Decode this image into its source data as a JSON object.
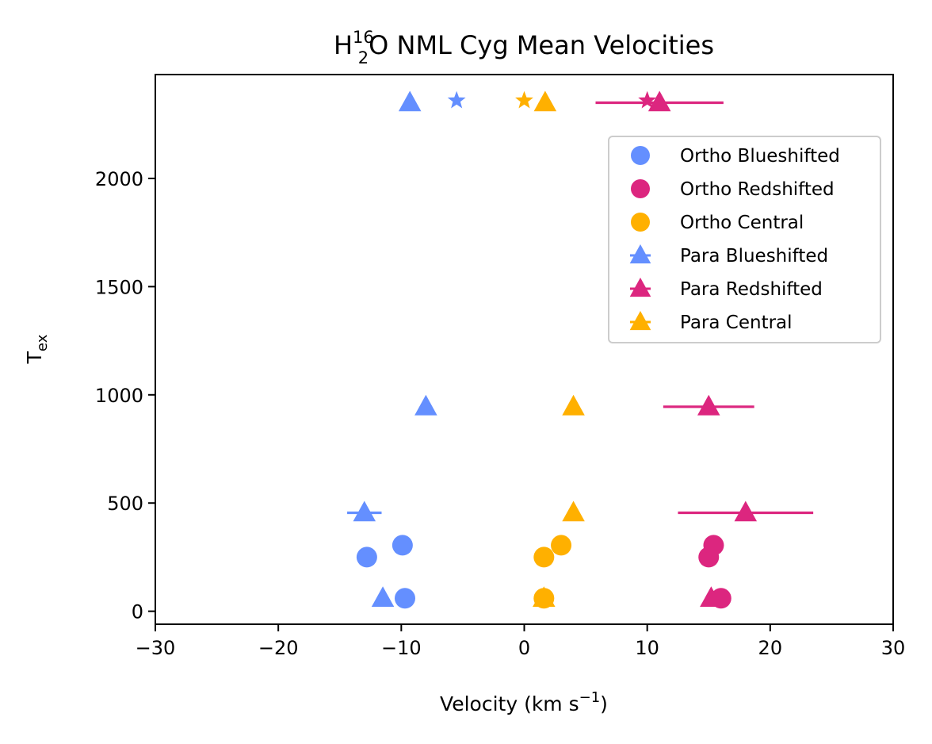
{
  "chart_data": {
    "type": "scatter",
    "title_main": "H",
    "title_sub": "2",
    "title_sup": "16",
    "title_rest": "O NML Cyg Mean Velocities",
    "xlabel_main": "Velocity (km s",
    "xlabel_sup": "−1",
    "xlabel_close": ")",
    "ylabel_main": "T",
    "ylabel_sub": "ex",
    "xlim": [
      -30,
      30
    ],
    "ylim": [
      -60,
      2480
    ],
    "xticks": [
      -30,
      -20,
      -10,
      0,
      10,
      20,
      30
    ],
    "xtick_labels": [
      "−30",
      "−20",
      "−10",
      "0",
      "10",
      "20",
      "30"
    ],
    "yticks": [
      0,
      500,
      1000,
      1500,
      2000
    ],
    "ytick_labels": [
      "0",
      "500",
      "1000",
      "1500",
      "2000"
    ],
    "legend_position": "upper-right",
    "series": [
      {
        "name": "Ortho Blueshifted",
        "color": "#648FFF",
        "marker": "circle",
        "points": [
          {
            "x": -9.7,
            "y": 60
          },
          {
            "x": -12.8,
            "y": 250
          },
          {
            "x": -9.9,
            "y": 305
          }
        ]
      },
      {
        "name": "Ortho Redshifted",
        "color": "#DC267F",
        "marker": "circle",
        "points": [
          {
            "x": 16.0,
            "y": 60
          },
          {
            "x": 15.0,
            "y": 250
          },
          {
            "x": 15.4,
            "y": 305
          }
        ]
      },
      {
        "name": "Ortho Central",
        "color": "#FFB000",
        "marker": "circle",
        "points": [
          {
            "x": 1.6,
            "y": 60
          },
          {
            "x": 1.6,
            "y": 250
          },
          {
            "x": 3.0,
            "y": 305
          }
        ]
      },
      {
        "name": "Para Blueshifted",
        "color": "#648FFF",
        "marker": "triangle",
        "points": [
          {
            "x": -11.5,
            "y": 60
          },
          {
            "x": -13.0,
            "y": 455,
            "xerr": 1.4
          },
          {
            "x": -8.0,
            "y": 945
          },
          {
            "x": -9.3,
            "y": 2350
          }
        ]
      },
      {
        "name": "Para Redshifted",
        "color": "#DC267F",
        "marker": "triangle",
        "points": [
          {
            "x": 15.2,
            "y": 60
          },
          {
            "x": 18.0,
            "y": 455,
            "xerr": 5.5
          },
          {
            "x": 15.0,
            "y": 945,
            "xerr": 3.7
          },
          {
            "x": 11.0,
            "y": 2350,
            "xerr": 5.2
          }
        ]
      },
      {
        "name": "Para Central",
        "color": "#FFB000",
        "marker": "triangle",
        "points": [
          {
            "x": 1.6,
            "y": 60
          },
          {
            "x": 4.0,
            "y": 455
          },
          {
            "x": 4.0,
            "y": 945
          },
          {
            "x": 1.7,
            "y": 2350
          }
        ]
      }
    ],
    "extra_markers": [
      {
        "color": "#648FFF",
        "marker": "star",
        "x": -5.5,
        "y": 2360
      },
      {
        "color": "#DC267F",
        "marker": "star",
        "x": 10.0,
        "y": 2360
      },
      {
        "color": "#FFB000",
        "marker": "star",
        "x": 0.0,
        "y": 2360
      }
    ]
  }
}
